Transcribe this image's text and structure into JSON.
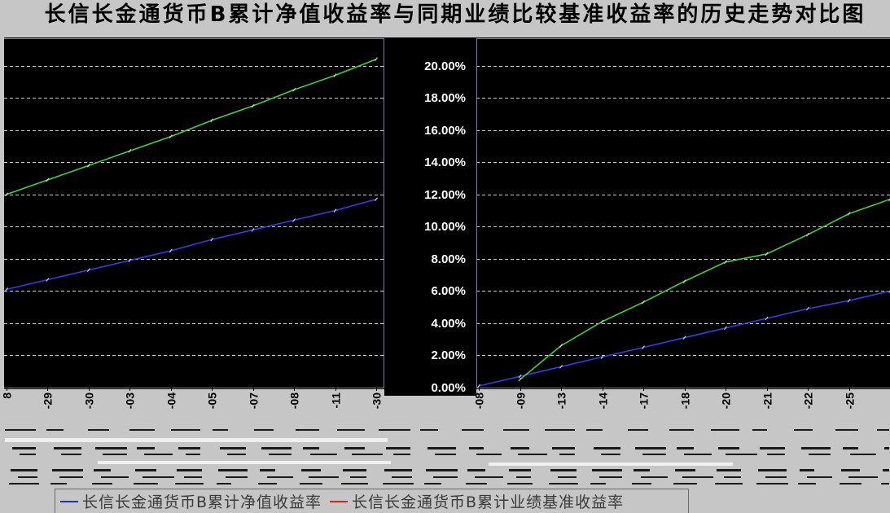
{
  "header": {
    "title": "长信长金通货币B累计净值收益率与同期业绩比较基准收益率的历史走势对比图"
  },
  "chart_data": {
    "type": "line",
    "ylim": [
      0,
      21.7
    ],
    "grid": true,
    "y_ticks": [
      {
        "value": 0,
        "label": "0.00%"
      },
      {
        "value": 2,
        "label": "2.00%"
      },
      {
        "value": 4,
        "label": "4.00%"
      },
      {
        "value": 6,
        "label": "6.00%"
      },
      {
        "value": 8,
        "label": "8.00%"
      },
      {
        "value": 10,
        "label": "10.00%"
      },
      {
        "value": 12,
        "label": "12.00%"
      },
      {
        "value": 14,
        "label": "14.00%"
      },
      {
        "value": 16,
        "label": "16.00%"
      },
      {
        "value": 18,
        "label": "18.00%"
      },
      {
        "value": 20,
        "label": "20.00%"
      }
    ],
    "legend": {
      "position": "bottom"
    },
    "panels": [
      {
        "categories": [
          "8",
          "-29",
          "-30",
          "-03",
          "-04",
          "-05",
          "-07",
          "-08",
          "-11",
          "-30"
        ]
      },
      {
        "categories": [
          "-08",
          "-09",
          "-13",
          "-14",
          "-17",
          "-18",
          "-20",
          "-21",
          "-22",
          "-25",
          ""
        ]
      }
    ],
    "series": [
      {
        "name": "长信长金通货币B累计净值收益率",
        "line_color": "#3a3ae6",
        "legend_color": "#2a2ad0",
        "values": [
          [
            6.1,
            6.7,
            7.3,
            7.9,
            8.5,
            9.2,
            9.8,
            10.4,
            11.0,
            11.7
          ],
          [
            0.1,
            0.7,
            1.3,
            1.9,
            2.5,
            3.1,
            3.7,
            4.3,
            4.9,
            5.4,
            6.0
          ]
        ]
      },
      {
        "name": "长信长金通货币B累计业绩基准收益率",
        "line_color": "#3fd23f",
        "legend_color": "#d02828",
        "values": [
          [
            12.0,
            12.9,
            13.8,
            14.7,
            15.6,
            16.6,
            17.5,
            18.5,
            19.4,
            20.4
          ],
          [
            null,
            0.5,
            2.6,
            4.1,
            5.3,
            6.6,
            7.8,
            8.3,
            9.5,
            10.8,
            11.7
          ]
        ]
      }
    ]
  }
}
